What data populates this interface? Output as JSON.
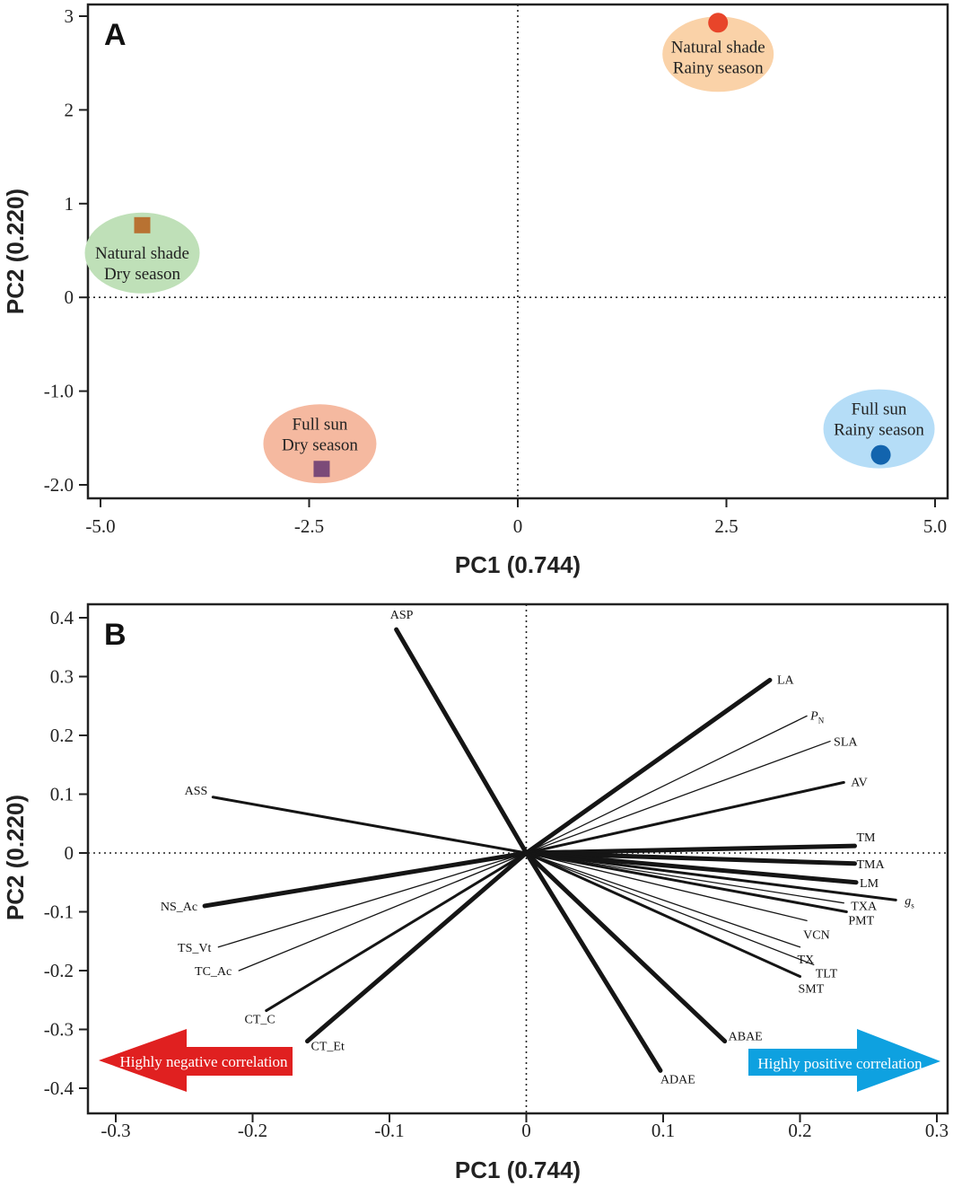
{
  "chart_data": [
    {
      "type": "scatter",
      "panel": "A",
      "xlabel": "PC1 (0.744)",
      "ylabel": "PC2 (0.220)",
      "xlim": [
        -5.0,
        5.0
      ],
      "ylim": [
        -2.0,
        3.0
      ],
      "xticks": [
        -5.0,
        -2.5,
        0,
        2.5,
        5.0
      ],
      "xtick_labels": [
        "-5.0",
        "-2.5",
        "0",
        "2.5",
        "5.0"
      ],
      "yticks": [
        -2.0,
        -1.0,
        0,
        1,
        2,
        3
      ],
      "ytick_labels": [
        "-2.0",
        "-1.0",
        "0",
        "1",
        "2",
        "3"
      ],
      "reference_lines": {
        "x": 0,
        "y": 0
      },
      "groups": [
        {
          "line1": "Natural shade",
          "line2": "Rainy season",
          "x": 2.4,
          "y": 2.93,
          "marker": "circle",
          "marker_color": "#e8452a",
          "ellipse_color": "#fad2a8"
        },
        {
          "line1": "Natural shade",
          "line2": "Dry season",
          "x": -4.5,
          "y": 0.77,
          "marker": "square",
          "marker_color": "#b87232",
          "ellipse_color": "#bfe0b8"
        },
        {
          "line1": "Full sun",
          "line2": "Dry season",
          "x": -2.35,
          "y": -1.83,
          "marker": "square",
          "marker_color": "#7b4a78",
          "ellipse_color": "#f5b9a0"
        },
        {
          "line1": "Full sun",
          "line2": "Rainy season",
          "x": 4.35,
          "y": -1.68,
          "marker": "circle",
          "marker_color": "#1264ae",
          "ellipse_color": "#b5ddf7"
        }
      ]
    },
    {
      "type": "biplot",
      "panel": "B",
      "xlabel": "PC1 (0.744)",
      "ylabel": "PC2 (0.220)",
      "xlim": [
        -0.3,
        0.3
      ],
      "ylim": [
        -0.4,
        0.4
      ],
      "xticks": [
        -0.3,
        -0.2,
        -0.1,
        0,
        0.1,
        0.2,
        0.3
      ],
      "xtick_labels": [
        "-0.3",
        "-0.2",
        "-0.1",
        "0",
        "0.1",
        "0.2",
        "0.3"
      ],
      "yticks": [
        -0.4,
        -0.3,
        -0.2,
        -0.1,
        0,
        0.1,
        0.2,
        0.3,
        0.4
      ],
      "ytick_labels": [
        "-0.4",
        "-0.3",
        "-0.2",
        "-0.1",
        "0",
        "0.1",
        "0.2",
        "0.3",
        "0.4"
      ],
      "reference_lines": {
        "x": 0,
        "y": 0
      },
      "vectors": [
        {
          "name": "ASP",
          "x": -0.095,
          "y": 0.38,
          "weight": "thick"
        },
        {
          "name": "LA",
          "x": 0.178,
          "y": 0.294,
          "weight": "thick"
        },
        {
          "name": "PN",
          "x": 0.205,
          "y": 0.233,
          "weight": "thin"
        },
        {
          "name": "SLA",
          "x": 0.222,
          "y": 0.19,
          "weight": "thin"
        },
        {
          "name": "AV",
          "x": 0.232,
          "y": 0.12,
          "weight": "medium"
        },
        {
          "name": "ASS",
          "x": -0.229,
          "y": 0.095,
          "weight": "medium"
        },
        {
          "name": "TM",
          "x": 0.24,
          "y": 0.012,
          "weight": "thick"
        },
        {
          "name": "TMA",
          "x": 0.24,
          "y": -0.018,
          "weight": "thick"
        },
        {
          "name": "LM",
          "x": 0.241,
          "y": -0.05,
          "weight": "thick"
        },
        {
          "name": "gs",
          "x": 0.27,
          "y": -0.08,
          "weight": "medium"
        },
        {
          "name": "TXA",
          "x": 0.232,
          "y": -0.085,
          "weight": "thin"
        },
        {
          "name": "PMT",
          "x": 0.234,
          "y": -0.1,
          "weight": "medium"
        },
        {
          "name": "VCN",
          "x": 0.205,
          "y": -0.115,
          "weight": "thin"
        },
        {
          "name": "TX",
          "x": 0.2,
          "y": -0.16,
          "weight": "thin"
        },
        {
          "name": "TLT",
          "x": 0.21,
          "y": -0.19,
          "weight": "thin"
        },
        {
          "name": "SMT",
          "x": 0.2,
          "y": -0.21,
          "weight": "medium"
        },
        {
          "name": "NS_Ac",
          "x": -0.235,
          "y": -0.09,
          "weight": "thick"
        },
        {
          "name": "TS_Vt",
          "x": -0.225,
          "y": -0.16,
          "weight": "thin"
        },
        {
          "name": "TC_Ac",
          "x": -0.21,
          "y": -0.2,
          "weight": "thin"
        },
        {
          "name": "CT_C",
          "x": -0.19,
          "y": -0.268,
          "weight": "medium"
        },
        {
          "name": "CT_Et",
          "x": -0.16,
          "y": -0.32,
          "weight": "thick"
        },
        {
          "name": "ABAE",
          "x": 0.145,
          "y": -0.32,
          "weight": "thick"
        },
        {
          "name": "ADAE",
          "x": 0.098,
          "y": -0.37,
          "weight": "thick"
        }
      ],
      "annotations": [
        {
          "text": "Highly negative correlation",
          "direction": "left",
          "color": "#e02020"
        },
        {
          "text": "Highly positive correlation",
          "direction": "right",
          "color": "#0ea1e0"
        }
      ]
    }
  ]
}
